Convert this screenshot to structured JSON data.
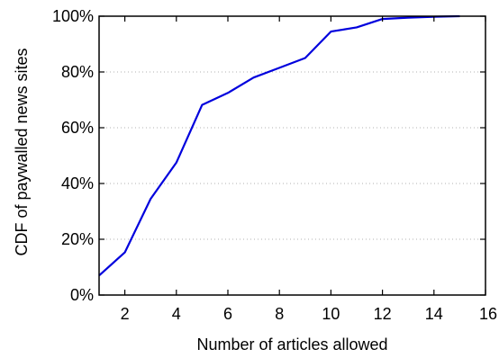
{
  "chart_data": {
    "type": "line",
    "title": "",
    "xlabel": "Number of articles allowed",
    "ylabel": "CDF of paywalled news sites",
    "xlim": [
      1,
      16
    ],
    "ylim": [
      0,
      100
    ],
    "x_ticks": [
      2,
      4,
      6,
      8,
      10,
      12,
      14,
      16
    ],
    "x_tick_labels": [
      "2",
      "4",
      "6",
      "8",
      "10",
      "12",
      "14",
      "16"
    ],
    "y_ticks": [
      0,
      20,
      40,
      60,
      80,
      100
    ],
    "y_tick_labels": [
      "0%",
      "20%",
      "40%",
      "60%",
      "80%",
      "100%"
    ],
    "grid": "horizontal dotted",
    "legend": "none",
    "series": [
      {
        "color": "#0000dd",
        "x": [
          1,
          2,
          3,
          4,
          5,
          6,
          7,
          8,
          9,
          10,
          11,
          12,
          13,
          14,
          15
        ],
        "y": [
          7,
          15.3,
          34.5,
          47.5,
          68.2,
          72.5,
          78,
          81.5,
          85,
          94.5,
          96,
          99,
          99.5,
          99.8,
          100
        ]
      }
    ]
  }
}
